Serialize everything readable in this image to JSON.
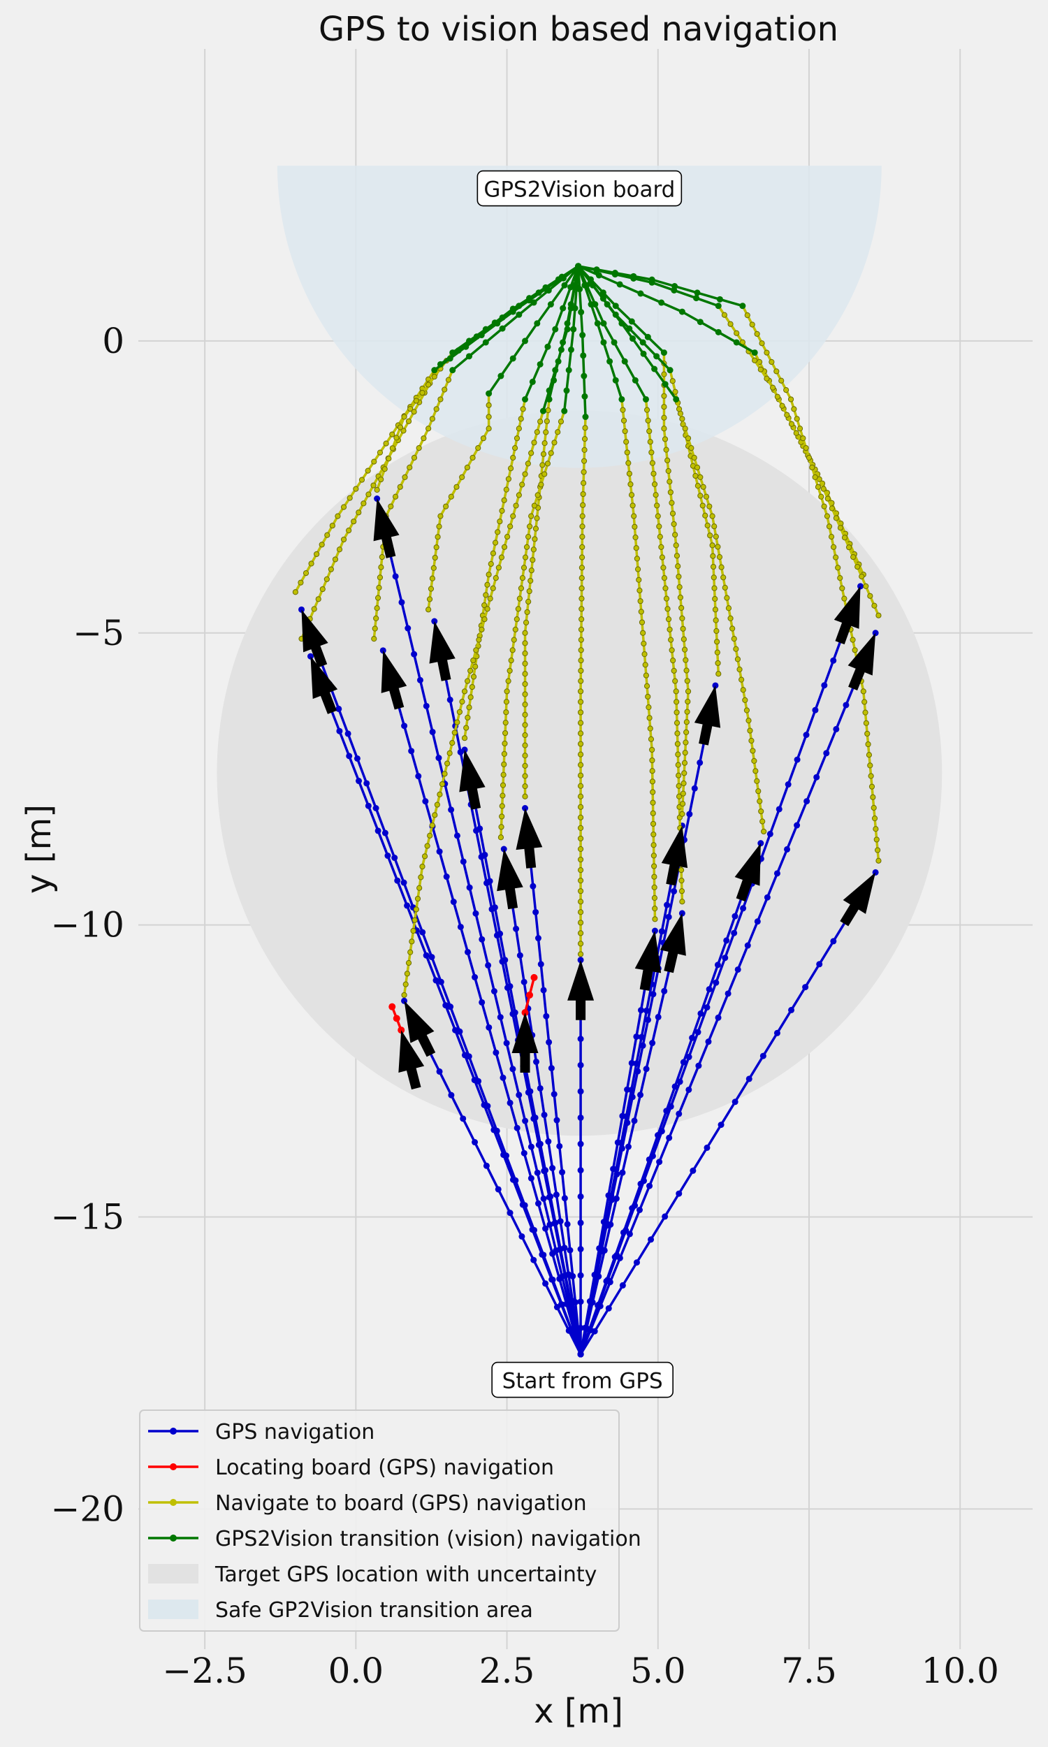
{
  "chart_data": {
    "type": "line",
    "title": "GPS to vision based navigation",
    "xlabel": "x [m]",
    "ylabel": "y [m]",
    "xlim": [
      -3.6,
      11.2
    ],
    "ylim": [
      -22.4,
      5.0
    ],
    "xticks": [
      -2.5,
      0.0,
      2.5,
      5.0,
      7.5,
      10.0
    ],
    "xtick_labels": [
      "−2.5",
      "0.0",
      "2.5",
      "5.0",
      "7.5",
      "10.0"
    ],
    "yticks": [
      0,
      -5,
      -10,
      -15,
      -20
    ],
    "ytick_labels": [
      "0",
      "−5",
      "−10",
      "−15",
      "−20"
    ],
    "grid": true,
    "legend_position": "bottom-left",
    "colors": {
      "gps": "#0000cc",
      "locating": "#ff0000",
      "navigate": "#bfbf00",
      "vision": "#007700",
      "target_area": "#e2e2e2",
      "safe_area": "#dde8ee"
    },
    "regions": {
      "target": {
        "center": [
          3.7,
          -7.4
        ],
        "radius": 6.0
      },
      "safe": {
        "center": [
          3.7,
          3.0
        ],
        "radius": 5.0
      }
    },
    "annotations": [
      {
        "text": "GPS2Vision board",
        "x": 3.7,
        "y": 2.6
      },
      {
        "text": "Start from GPS",
        "x": 3.75,
        "y": -17.8
      }
    ],
    "legend": [
      {
        "label": "GPS navigation",
        "kind": "gps"
      },
      {
        "label": "Locating board (GPS) navigation",
        "kind": "locating"
      },
      {
        "label": "Navigate to board (GPS) navigation",
        "kind": "navigate"
      },
      {
        "label": "GPS2Vision transition (vision) navigation",
        "kind": "vision"
      },
      {
        "label": "Target GPS location with uncertainty",
        "kind": "target_area"
      },
      {
        "label": "Safe GP2Vision transition area",
        "kind": "safe_area"
      }
    ],
    "start": [
      3.72,
      -17.35
    ],
    "board": [
      3.68,
      1.28
    ],
    "runs": [
      {
        "gps": [
          -0.9,
          -4.6
        ],
        "nav": [
          [
            -1.0,
            -4.3
          ],
          [
            -0.3,
            -3.0
          ],
          [
            0.6,
            -1.6
          ],
          [
            1.3,
            -0.5
          ]
        ],
        "vis": [
          [
            1.3,
            -0.5
          ],
          [
            2.6,
            0.5
          ],
          [
            3.68,
            1.28
          ]
        ]
      },
      {
        "gps": [
          -0.75,
          -5.4
        ],
        "nav": [
          [
            -0.9,
            -5.1
          ],
          [
            -0.2,
            -3.4
          ],
          [
            0.7,
            -1.7
          ],
          [
            1.4,
            -0.4
          ]
        ],
        "vis": [
          [
            1.4,
            -0.4
          ],
          [
            2.6,
            0.55
          ],
          [
            3.68,
            1.28
          ]
        ]
      },
      {
        "gps": [
          0.35,
          -2.7
        ],
        "nav": [
          [
            0.35,
            -2.55
          ],
          [
            0.8,
            -1.3
          ],
          [
            1.6,
            -0.2
          ]
        ],
        "vis": [
          [
            1.6,
            -0.2
          ],
          [
            2.7,
            0.6
          ],
          [
            3.68,
            1.28
          ]
        ]
      },
      {
        "gps": [
          0.45,
          -5.3
        ],
        "nav": [
          [
            0.3,
            -5.1
          ],
          [
            0.5,
            -3.0
          ],
          [
            1.2,
            -1.5
          ],
          [
            1.6,
            -0.5
          ]
        ],
        "vis": [
          [
            1.6,
            -0.5
          ],
          [
            2.7,
            0.45
          ],
          [
            3.68,
            1.28
          ]
        ]
      },
      {
        "gps": [
          1.3,
          -4.8
        ],
        "nav": [
          [
            1.2,
            -4.6
          ],
          [
            1.4,
            -3.0
          ],
          [
            2.2,
            -1.5
          ],
          [
            2.2,
            -0.9
          ]
        ],
        "vis": [
          [
            2.2,
            -0.9
          ],
          [
            3.0,
            0.3
          ],
          [
            3.68,
            1.28
          ]
        ]
      },
      {
        "gps": [
          1.8,
          -7.0
        ],
        "nav": [
          [
            1.8,
            -6.8
          ],
          [
            2.2,
            -4.0
          ],
          [
            2.6,
            -2.0
          ],
          [
            2.8,
            -1.0
          ]
        ],
        "vis": [
          [
            2.8,
            -1.0
          ],
          [
            3.3,
            0.2
          ],
          [
            3.68,
            1.28
          ]
        ]
      },
      {
        "gps": [
          0.8,
          -11.3
        ],
        "nav": [
          [
            0.8,
            -11.2
          ],
          [
            1.1,
            -9.0
          ],
          [
            1.8,
            -6.0
          ],
          [
            2.6,
            -3.0
          ],
          [
            3.1,
            -1.2
          ]
        ],
        "vis": [
          [
            3.1,
            -1.2
          ],
          [
            3.5,
            0.2
          ],
          [
            3.68,
            1.28
          ]
        ]
      },
      {
        "gps": [
          2.8,
          -8.0
        ],
        "nav": [
          [
            2.8,
            -7.8
          ],
          [
            2.8,
            -5.0
          ],
          [
            3.05,
            -2.5
          ],
          [
            3.2,
            -1.0
          ]
        ],
        "vis": [
          [
            3.2,
            -1.0
          ],
          [
            3.5,
            0.3
          ],
          [
            3.68,
            1.28
          ]
        ]
      },
      {
        "gps": [
          2.45,
          -8.7
        ],
        "nav": [
          [
            2.4,
            -8.5
          ],
          [
            2.5,
            -6.0
          ],
          [
            2.9,
            -3.0
          ],
          [
            3.45,
            -1.2
          ]
        ],
        "vis": [
          [
            3.45,
            -1.2
          ],
          [
            3.6,
            0.2
          ],
          [
            3.68,
            1.28
          ]
        ]
      },
      {
        "gps": [
          3.72,
          -10.6
        ],
        "nav": [
          [
            3.72,
            -10.5
          ],
          [
            3.72,
            -6.0
          ],
          [
            3.75,
            -3.0
          ],
          [
            3.8,
            -1.3
          ]
        ],
        "vis": [
          [
            3.8,
            -1.3
          ],
          [
            3.75,
            0.1
          ],
          [
            3.68,
            1.28
          ]
        ]
      },
      {
        "gps": [
          4.95,
          -10.1
        ],
        "nav": [
          [
            4.95,
            -9.9
          ],
          [
            4.9,
            -7.0
          ],
          [
            4.6,
            -3.0
          ],
          [
            4.4,
            -1.0
          ]
        ],
        "vis": [
          [
            4.4,
            -1.0
          ],
          [
            4.0,
            0.3
          ],
          [
            3.68,
            1.28
          ]
        ]
      },
      {
        "gps": [
          5.4,
          -9.8
        ],
        "nav": [
          [
            5.4,
            -9.6
          ],
          [
            5.3,
            -6.0
          ],
          [
            5.0,
            -3.0
          ],
          [
            4.8,
            -1.0
          ]
        ],
        "vis": [
          [
            4.8,
            -1.0
          ],
          [
            4.1,
            0.3
          ],
          [
            3.68,
            1.28
          ]
        ]
      },
      {
        "gps": [
          5.95,
          -5.9
        ],
        "nav": [
          [
            6.0,
            -5.7
          ],
          [
            5.9,
            -3.5
          ],
          [
            5.5,
            -1.8
          ],
          [
            5.2,
            -0.5
          ]
        ],
        "vis": [
          [
            5.2,
            -0.5
          ],
          [
            4.3,
            0.45
          ],
          [
            3.68,
            1.28
          ]
        ]
      },
      {
        "gps": [
          5.4,
          -8.3
        ],
        "nav": [
          [
            5.4,
            -8.1
          ],
          [
            5.5,
            -6.0
          ],
          [
            5.3,
            -3.5
          ],
          [
            5.1,
            -1.5
          ],
          [
            5.1,
            -0.2
          ]
        ],
        "vis": [
          [
            5.1,
            -0.2
          ],
          [
            4.3,
            0.6
          ],
          [
            3.68,
            1.28
          ]
        ]
      },
      {
        "gps": [
          6.7,
          -8.6
        ],
        "nav": [
          [
            6.75,
            -8.4
          ],
          [
            6.5,
            -6.5
          ],
          [
            5.9,
            -3.0
          ],
          [
            5.3,
            -1.0
          ]
        ],
        "vis": [
          [
            5.3,
            -1.0
          ],
          [
            4.4,
            0.3
          ],
          [
            3.68,
            1.28
          ]
        ]
      },
      {
        "gps": [
          8.35,
          -4.2
        ],
        "nav": [
          [
            8.4,
            -4.0
          ],
          [
            7.8,
            -2.6
          ],
          [
            7.0,
            -1.0
          ],
          [
            6.6,
            -0.2
          ]
        ],
        "vis": [
          [
            6.6,
            -0.2
          ],
          [
            5.4,
            0.5
          ],
          [
            3.68,
            1.28
          ]
        ]
      },
      {
        "gps": [
          8.6,
          -5.0
        ],
        "nav": [
          [
            8.65,
            -4.7
          ],
          [
            7.6,
            -2.2
          ],
          [
            6.9,
            -0.8
          ],
          [
            6.0,
            0.6
          ]
        ],
        "vis": [
          [
            6.0,
            0.6
          ],
          [
            4.9,
            1.0
          ],
          [
            3.68,
            1.28
          ]
        ]
      },
      {
        "gps": [
          8.6,
          -9.1
        ],
        "nav": [
          [
            8.65,
            -8.9
          ],
          [
            8.4,
            -6.0
          ],
          [
            7.8,
            -3.0
          ],
          [
            7.2,
            -1.0
          ],
          [
            6.4,
            0.6
          ]
        ],
        "vis": [
          [
            6.4,
            0.6
          ],
          [
            4.9,
            1.05
          ],
          [
            3.68,
            1.28
          ]
        ]
      }
    ],
    "locating": [
      [
        [
          0.9,
          -12.4
        ],
        [
          0.75,
          -11.8
        ],
        [
          0.6,
          -11.4
        ]
      ],
      [
        [
          2.8,
          -12.0
        ],
        [
          2.8,
          -11.5
        ],
        [
          2.95,
          -10.9
        ]
      ]
    ]
  }
}
